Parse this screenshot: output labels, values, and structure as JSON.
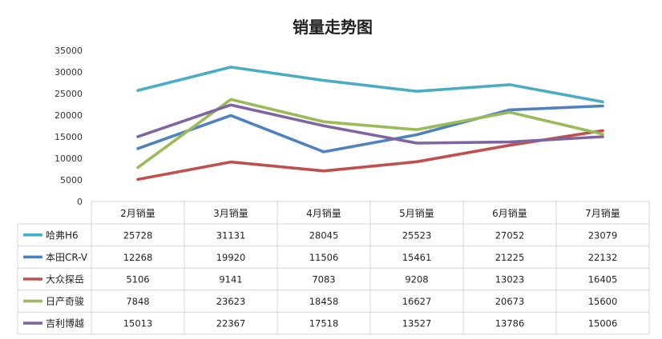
{
  "chart_data": {
    "type": "line",
    "title": "销量走势图",
    "categories": [
      "2月销量",
      "3月销量",
      "4月销量",
      "5月销量",
      "6月销量",
      "7月销量"
    ],
    "ylim": [
      0,
      35000
    ],
    "yticks": [
      "0",
      "5000",
      "10000",
      "15000",
      "20000",
      "25000",
      "30000",
      "35000"
    ],
    "grid": false,
    "legend": "data-table",
    "series": [
      {
        "name": "哈弗H6",
        "color": "#4bacc6",
        "values": [
          25728,
          31131,
          28045,
          25523,
          27052,
          23079
        ],
        "labels": [
          "25728",
          "31131",
          "28045",
          "25523",
          "27052",
          "23079"
        ]
      },
      {
        "name": "本田CR-V",
        "color": "#4f81bd",
        "values": [
          12268,
          19920,
          11506,
          15461,
          21225,
          22132
        ],
        "labels": [
          "12268",
          "19920",
          "11506",
          "15461",
          "21225",
          "22132"
        ]
      },
      {
        "name": "大众探岳",
        "color": "#c0504d",
        "values": [
          5106,
          9141,
          7083,
          9208,
          13023,
          16405
        ],
        "labels": [
          "5106",
          "9141",
          "7083",
          "9208",
          "13023",
          "16405"
        ]
      },
      {
        "name": "日产奇骏",
        "color": "#9bbb59",
        "values": [
          7848,
          23623,
          18458,
          16627,
          20673,
          15600
        ],
        "labels": [
          "7848",
          "23623",
          "18458",
          "16627",
          "20673",
          "15600"
        ]
      },
      {
        "name": "吉利博越",
        "color": "#8064a2",
        "values": [
          15013,
          22367,
          17518,
          13527,
          13786,
          15006
        ],
        "labels": [
          "15013",
          "22367",
          "17518",
          "13527",
          "13786",
          "15006"
        ]
      }
    ]
  }
}
